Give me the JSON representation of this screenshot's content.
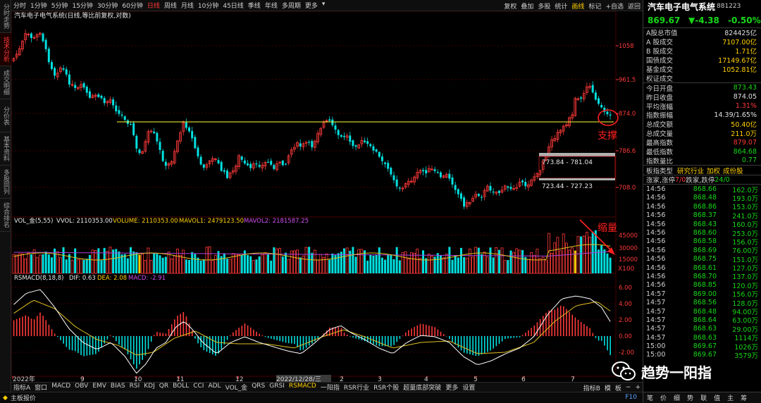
{
  "left_rail": [
    "分时走势",
    "技术分析",
    "成交明细",
    "分价表",
    "基本资料",
    "多股同列",
    "综合排名"
  ],
  "left_rail_active": 1,
  "periods": [
    "分时",
    "1分钟",
    "5分钟",
    "15分钟",
    "30分钟",
    "60分钟",
    "日线",
    "周线",
    "月线",
    "10分钟",
    "45日线",
    "季线",
    "年线",
    "多周期",
    "更多"
  ],
  "periods_active": 6,
  "tools": [
    "复权",
    "叠加",
    "多股",
    "统计",
    "画线",
    "标记",
    "+自选",
    "返回"
  ],
  "tools_active": 4,
  "main_chart": {
    "legend": "汽车电子电气系统(日线,等比前复权,对数)",
    "y_labels": [
      "1058",
      "961.5",
      "874.0",
      "786.6",
      "708.0"
    ],
    "support_label": "支撑",
    "box1_label": "773.84 - 781.04",
    "box2_label": "723.44 - 727.23"
  },
  "volume_panel": {
    "legend_name": "VOL_金(5,55)",
    "vvol": "VVOL: 2110353.00",
    "volume": "VOLUME: 2110353.00",
    "mavol1": "MAVOL1: 2479123.50",
    "mavol2": "MAVOL2: 2181587.25",
    "shrink_label": "缩量",
    "y_labels": [
      "45000",
      "30000",
      "15000"
    ],
    "unit": "X100"
  },
  "macd_panel": {
    "legend_name": "RSMACD(8,18,8)",
    "dif": "DIF: 0.63",
    "dea": "DEA: 2.08",
    "macd": "MACD: -2.91",
    "y_labels": [
      "6.00",
      "4.00",
      "2.00",
      "0.00",
      "-2.00"
    ]
  },
  "x_axis": [
    "2022年",
    "9",
    "10",
    "11",
    "12",
    "2022/12/28/三",
    "2",
    "3",
    "4",
    "5",
    "6",
    "7"
  ],
  "bottom_tabs": [
    "指标A",
    "窗口",
    "MACD",
    "OBV",
    "EMV",
    "BIAS",
    "RSI",
    "KDJ",
    "QR",
    "BOLL",
    "CCI",
    "ADL",
    "VOL_金",
    "QRS",
    "GRSI",
    "RSMACD",
    "一阳指",
    "RSR行业",
    "RSR个股",
    "超量底部突破",
    "更多",
    "设置"
  ],
  "bottom_tabs_active": 15,
  "bottom_right": [
    "指标B",
    "模",
    "板"
  ],
  "status_left": "主板报价",
  "status_right": "F10",
  "side": {
    "title": "汽车电子电气系统",
    "code": "881223",
    "last": "869.67",
    "change": "▼-4.38",
    "pct": "-0.50%",
    "stats_a": [
      {
        "k": "A股总市值",
        "v": "824425亿",
        "c": "#e0e0e0"
      },
      {
        "k": "A 股成交",
        "v": "7107.00亿",
        "c": "#ffd000"
      },
      {
        "k": "B 股成交",
        "v": "1.71亿",
        "c": "#ffd000"
      },
      {
        "k": "国债成交",
        "v": "17149.67亿",
        "c": "#ffd000"
      },
      {
        "k": "基金成交",
        "v": "1052.81亿",
        "c": "#ffd000"
      },
      {
        "k": "权证成交",
        "v": "",
        "c": "#ffd000"
      }
    ],
    "stats_b": [
      {
        "k": "今日开盘",
        "v": "873.43",
        "c": "#18d818"
      },
      {
        "k": "昨日收盘",
        "v": "874.05",
        "c": "#e0e0e0"
      },
      {
        "k": "平均涨幅",
        "v": "1.31%",
        "c": "#ff3a3a"
      },
      {
        "k": "指数振幅",
        "v": "14.39/1.65%",
        "c": "#e0e0e0"
      },
      {
        "k": "总成交额",
        "v": "50.40亿",
        "c": "#ffd000"
      },
      {
        "k": "总成交量",
        "v": "211.0万",
        "c": "#ffd000"
      },
      {
        "k": "最高指数",
        "v": "879.07",
        "c": "#ff3a3a"
      },
      {
        "k": "最低指数",
        "v": "864.68",
        "c": "#18d818"
      },
      {
        "k": "指数量比",
        "v": "0.77",
        "c": "#18d818"
      }
    ],
    "category": {
      "k": "板指类型",
      "items": [
        "研究行业",
        "加权",
        "成份股"
      ]
    },
    "updown": {
      "k1": "涨家,涨停",
      "v1": "7/0",
      "k2": "跌家,跌停",
      "v2": "24/0"
    },
    "ticks": [
      {
        "t": "14:56",
        "p": "868.66",
        "v": "162.0万"
      },
      {
        "t": "14:56",
        "p": "868.48",
        "v": "193.0万"
      },
      {
        "t": "14:56",
        "p": "868.86",
        "v": "153.0万"
      },
      {
        "t": "14:56",
        "p": "868.37",
        "v": "241.0万"
      },
      {
        "t": "14:56",
        "p": "868.43",
        "v": "160.0万"
      },
      {
        "t": "14:56",
        "p": "868.60",
        "v": "253.0万"
      },
      {
        "t": "14:56",
        "p": "868.58",
        "v": "156.0万"
      },
      {
        "t": "14:56",
        "p": "868.69",
        "v": "76.00万"
      },
      {
        "t": "14:56",
        "p": "868.75",
        "v": "151.0万"
      },
      {
        "t": "14:56",
        "p": "868.61",
        "v": "127.0万"
      },
      {
        "t": "14:56",
        "p": "868.70",
        "v": "137.0万"
      },
      {
        "t": "14:56",
        "p": "868.85",
        "v": "120.0万"
      },
      {
        "t": "14:57",
        "p": "869.00",
        "v": "156.0万"
      },
      {
        "t": "14:57",
        "p": "868.56",
        "v": "128.0万"
      },
      {
        "t": "14:57",
        "p": "868.48",
        "v": "94.00万"
      },
      {
        "t": "14:57",
        "p": "868.64",
        "v": "63.00万"
      },
      {
        "t": "14:57",
        "p": "868.63",
        "v": "29.00万"
      },
      {
        "t": "14:57",
        "p": "868.63",
        "v": "1114万"
      },
      {
        "t": "15:00",
        "p": "869.67",
        "v": "1026万"
      },
      {
        "t": "15:00",
        "p": "869.67",
        "v": "3579万"
      }
    ],
    "foot": [
      "笔",
      "价",
      "细",
      "势",
      "联",
      "值",
      "主",
      "筹"
    ]
  },
  "watermark": "趋势一阳指",
  "colors": {
    "up": "#ff3a3a",
    "down": "#00e0e0",
    "support": "#ffff33",
    "dif": "#ffffff",
    "dea": "#e0c020",
    "mavol2": "#b040e0",
    "annotation": "#ff2020"
  }
}
